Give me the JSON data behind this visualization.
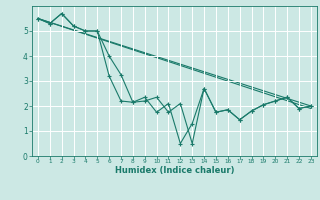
{
  "xlabel": "Humidex (Indice chaleur)",
  "ylabel": "",
  "bg_color": "#cce8e4",
  "line_color": "#1a7a6a",
  "grid_color": "#ffffff",
  "xlim": [
    -0.5,
    23.5
  ],
  "ylim": [
    0,
    6.0
  ],
  "yticks": [
    0,
    1,
    2,
    3,
    4,
    5
  ],
  "xticks": [
    0,
    1,
    2,
    3,
    4,
    5,
    6,
    7,
    8,
    9,
    10,
    11,
    12,
    13,
    14,
    15,
    16,
    17,
    18,
    19,
    20,
    21,
    22,
    23
  ],
  "line1_x": [
    0,
    1,
    2,
    3,
    4,
    5,
    6,
    7,
    8,
    9,
    10,
    11,
    12,
    13,
    14,
    15,
    16,
    17,
    18,
    19,
    20,
    21,
    22,
    23
  ],
  "line1_y": [
    5.5,
    5.3,
    5.7,
    5.2,
    5.0,
    5.0,
    3.2,
    2.2,
    2.15,
    2.35,
    1.75,
    2.1,
    0.5,
    1.3,
    2.7,
    1.75,
    1.85,
    1.45,
    1.8,
    2.05,
    2.2,
    2.35,
    1.9,
    2.0
  ],
  "line2_x": [
    0,
    1,
    2,
    3,
    4,
    5,
    6,
    7,
    8,
    9,
    10,
    11,
    12,
    13,
    14,
    15,
    16,
    17,
    18,
    19,
    20,
    21,
    22,
    23
  ],
  "line2_y": [
    5.5,
    5.3,
    5.7,
    5.2,
    5.0,
    5.0,
    4.0,
    3.25,
    2.15,
    2.2,
    2.35,
    1.75,
    2.1,
    0.5,
    2.7,
    1.75,
    1.85,
    1.45,
    1.8,
    2.05,
    2.2,
    2.35,
    1.9,
    2.0
  ],
  "line3_x": [
    0,
    23
  ],
  "line3_y": [
    5.5,
    2.0
  ],
  "line4_x": [
    0,
    23
  ],
  "line4_y": [
    5.5,
    1.9
  ]
}
